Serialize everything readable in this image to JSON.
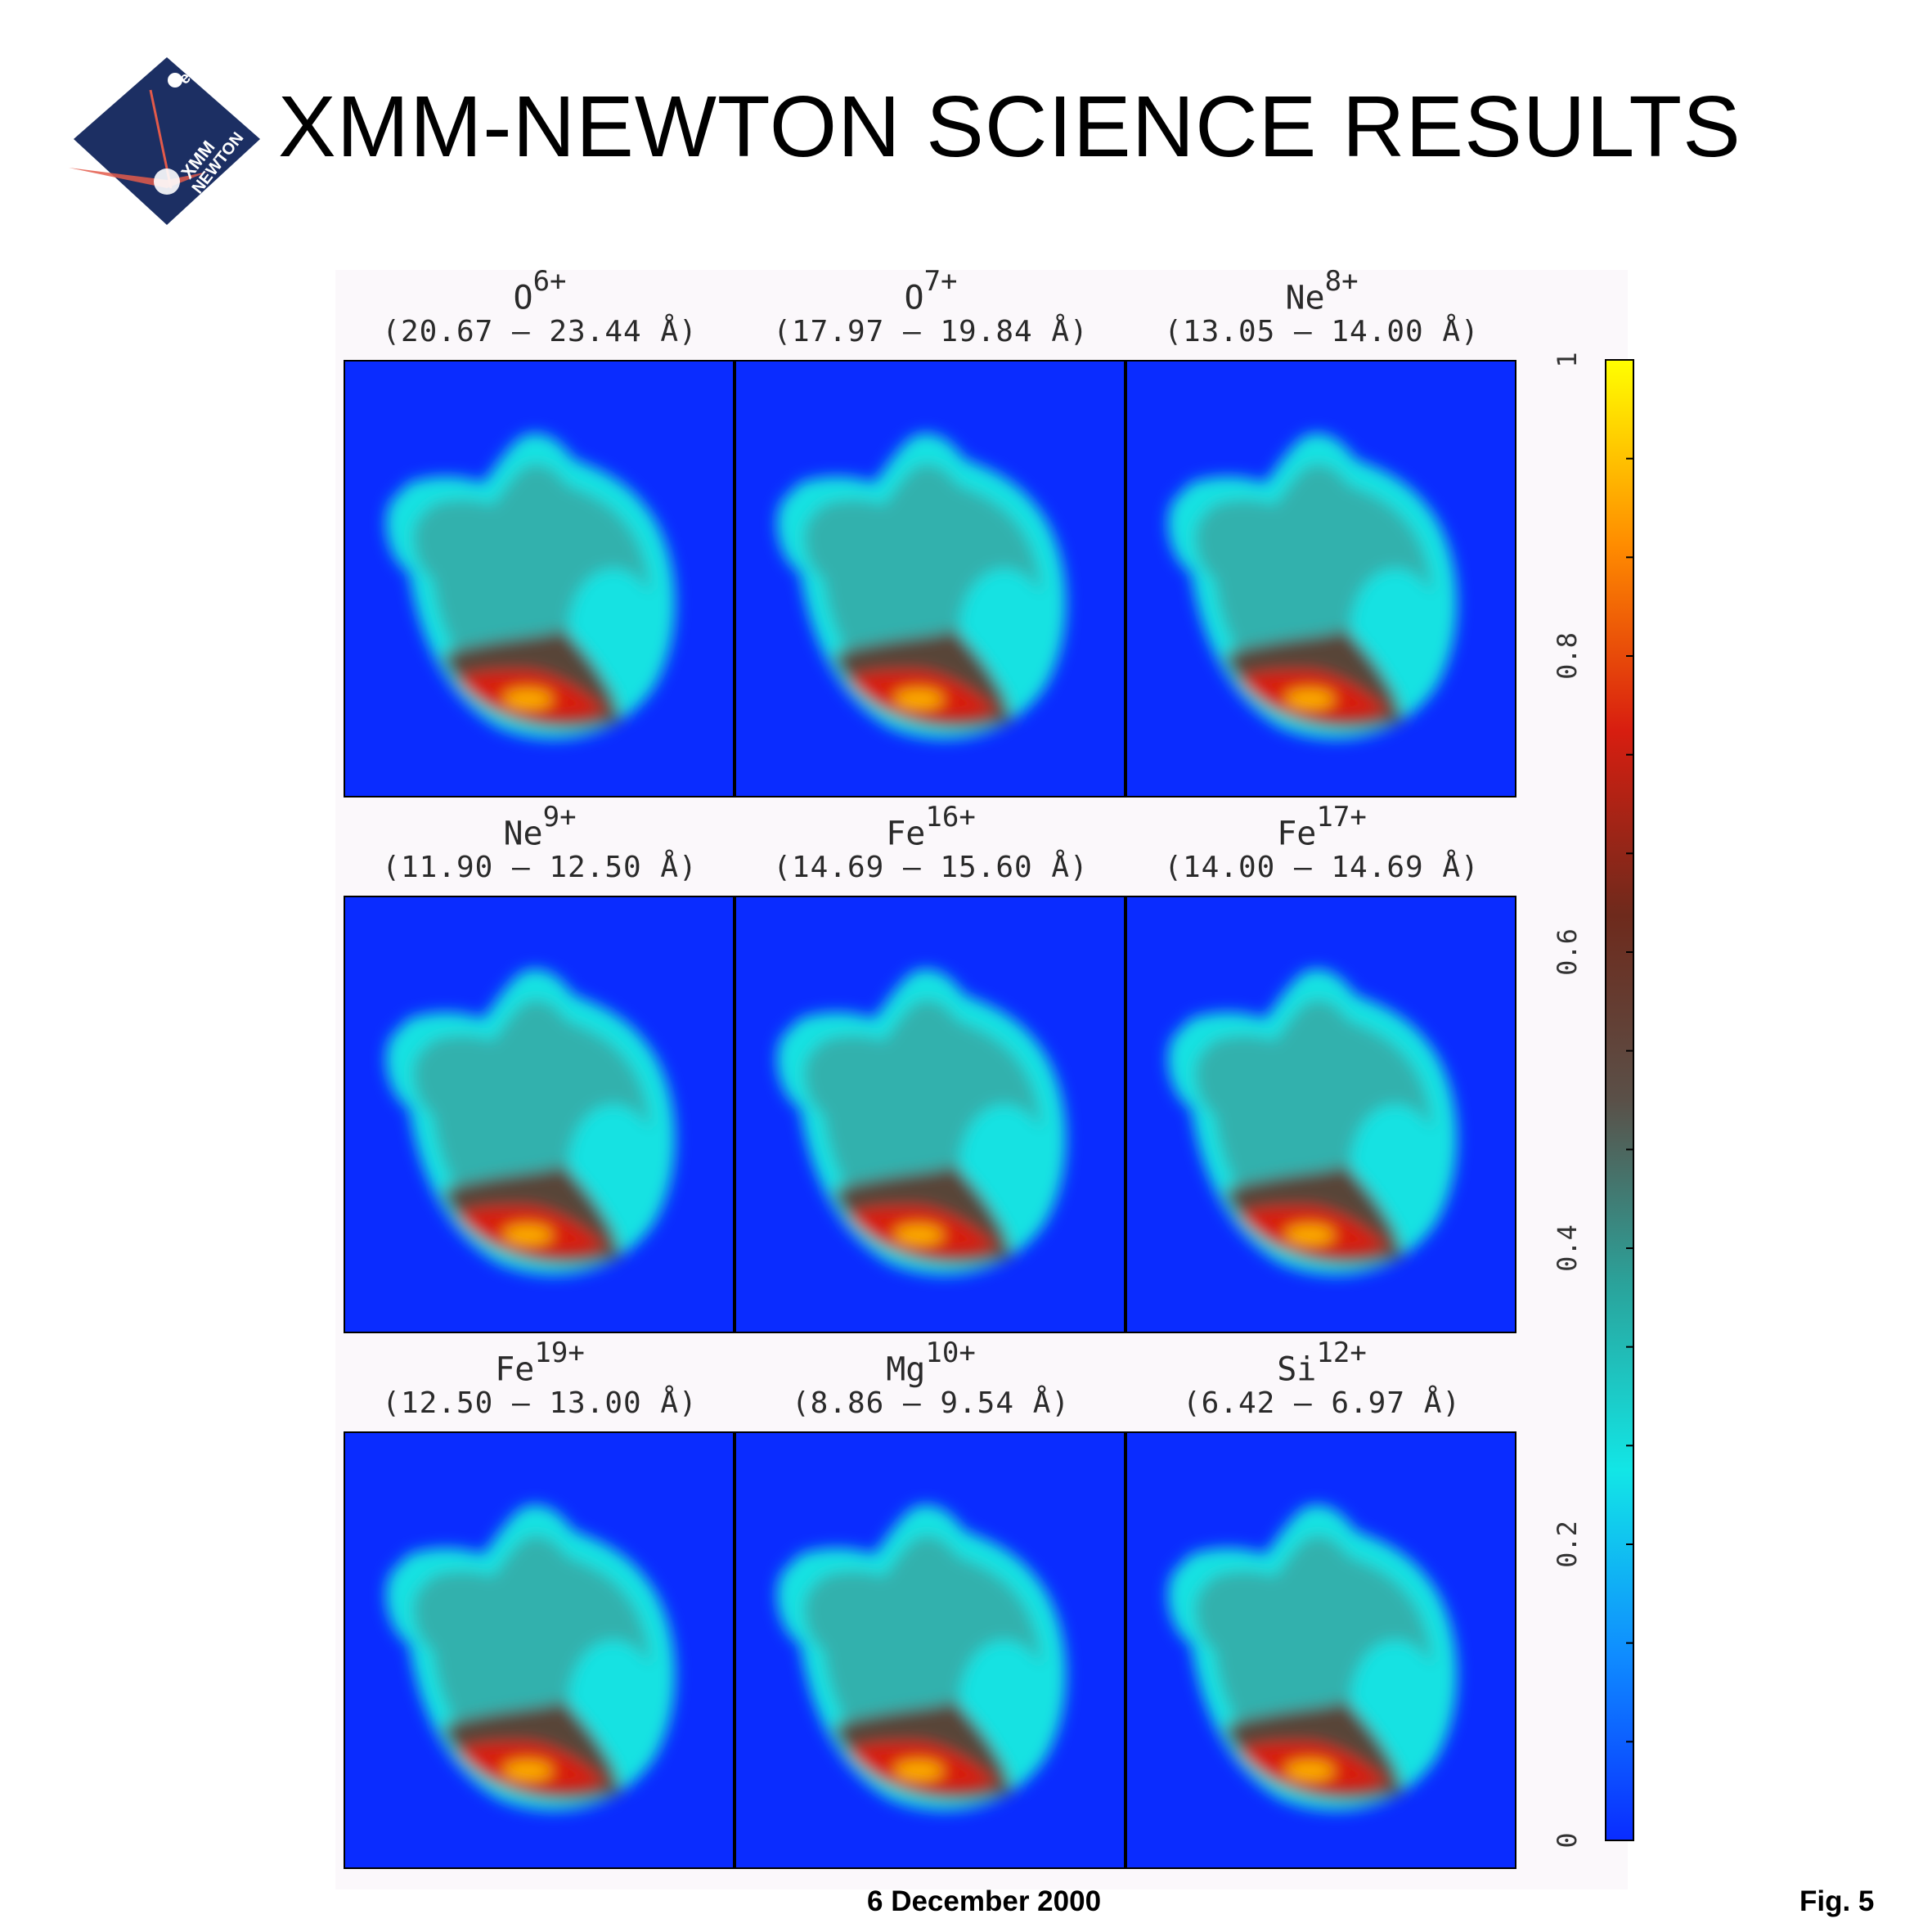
{
  "header": {
    "title": "XMM-NEWTON SCIENCE RESULTS",
    "logo": {
      "name": "xmm-newton-logo",
      "text_esa": "esa",
      "text_mission": [
        "XMM",
        "NEWTON"
      ],
      "colors": {
        "background": "#1c2f63",
        "flare": "#e35a4a",
        "text": "#ffffff"
      }
    }
  },
  "figure": {
    "panels": [
      {
        "ion": "O",
        "charge": "6+",
        "range": "(20.67 – 23.44 Å)"
      },
      {
        "ion": "O",
        "charge": "7+",
        "range": "(17.97 – 19.84 Å)"
      },
      {
        "ion": "Ne",
        "charge": "8+",
        "range": "(13.05 – 14.00 Å)"
      },
      {
        "ion": "Ne",
        "charge": "9+",
        "range": "(11.90 – 12.50 Å)"
      },
      {
        "ion": "Fe",
        "charge": "16+",
        "range": "(14.69 – 15.60 Å)"
      },
      {
        "ion": "Fe",
        "charge": "17+",
        "range": "(14.00 – 14.69 Å)"
      },
      {
        "ion": "Fe",
        "charge": "19+",
        "range": "(12.50 – 13.00 Å)"
      },
      {
        "ion": "Mg",
        "charge": "10+",
        "range": "(8.86 – 9.54 Å)"
      },
      {
        "ion": "Si",
        "charge": "12+",
        "range": "(6.42 – 6.97 Å)"
      }
    ],
    "colorbar": {
      "min": 0,
      "max": 1,
      "tick_labels": [
        "0",
        "0.2",
        "0.4",
        "0.6",
        "0.8",
        "1"
      ],
      "colors": [
        "#0a2cff",
        "#0f8cff",
        "#12e6e6",
        "#2aa39b",
        "#5a5048",
        "#6e2a1c",
        "#d81e10",
        "#ff8c00",
        "#ffff00"
      ]
    },
    "map_colors": {
      "background": "#0a2cff",
      "rim": "#18e2e2",
      "mid": "#3aa5a0",
      "dark": "#5c3a2c",
      "hot": "#d81e10",
      "peak": "#ffb000"
    }
  },
  "footer": {
    "date": "6 December 2000",
    "fig_label": "Fig. 5"
  }
}
